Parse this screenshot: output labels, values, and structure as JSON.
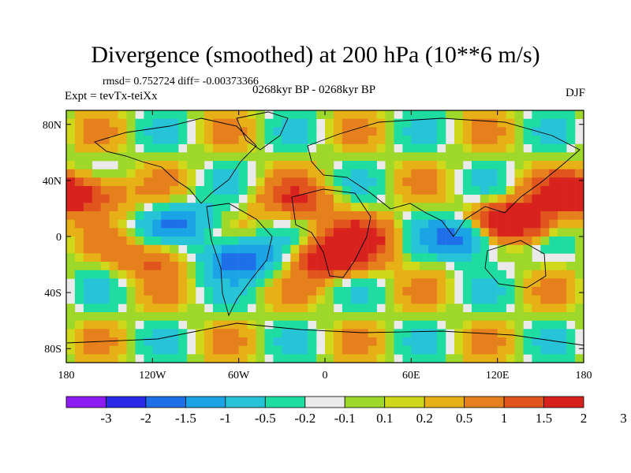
{
  "title": "Divergence (smoothed) at 200 hPa (10**6 m/s)",
  "stats": "rmsd= 0.752724 diff= -0.00373366",
  "experiment": "Expt = tevTx-teiXx",
  "period": "0268kyr BP - 0268kyr BP",
  "season": "DJF",
  "lat_ticks": [
    "80N",
    "40N",
    "0",
    "40S",
    "80S"
  ],
  "lon_ticks": [
    "180",
    "120W",
    "60W",
    "0",
    "60E",
    "120E",
    "180"
  ],
  "colorbar": {
    "colors": [
      "#8c1cf0",
      "#2a2ae6",
      "#1f6fe8",
      "#1aa4e6",
      "#27c4d8",
      "#1fdca0",
      "#eaeaea",
      "#9ed82a",
      "#cfd81a",
      "#e6b016",
      "#e6801c",
      "#e2541e",
      "#d8221e"
    ],
    "labels": [
      "-3",
      "-2",
      "-1.5",
      "-1",
      "-0.5",
      "-0.2",
      "-0.1",
      "0.1",
      "0.2",
      "0.5",
      "1",
      "1.5",
      "2",
      "3"
    ]
  },
  "chart_data": {
    "type": "heatmap",
    "variable": "Divergence (smoothed) at 200 hPa",
    "units": "10**6 m/s",
    "x_range": [
      -180,
      180
    ],
    "y_range": [
      -90,
      90
    ],
    "levels": [
      -3,
      -2,
      -1.5,
      -1,
      -0.5,
      -0.2,
      -0.1,
      0.1,
      0.2,
      0.5,
      1,
      1.5,
      2,
      3
    ],
    "features": [
      {
        "lon": -165,
        "lat": 30,
        "value": 1.6
      },
      {
        "lon": 130,
        "lat": 10,
        "value": 3.0
      },
      {
        "lon": 100,
        "lat": 0,
        "value": -2.2
      },
      {
        "lon": 5,
        "lat": -15,
        "value": 2.3
      },
      {
        "lon": -60,
        "lat": -15,
        "value": -2.1
      },
      {
        "lon": -20,
        "lat": 25,
        "value": 1.2
      },
      {
        "lon": 25,
        "lat": 0,
        "value": 1.4
      },
      {
        "lon": -100,
        "lat": 10,
        "value": -1.3
      },
      {
        "lon": 170,
        "lat": 30,
        "value": 1.5
      },
      {
        "lon": -120,
        "lat": -15,
        "value": 1.2
      }
    ]
  }
}
